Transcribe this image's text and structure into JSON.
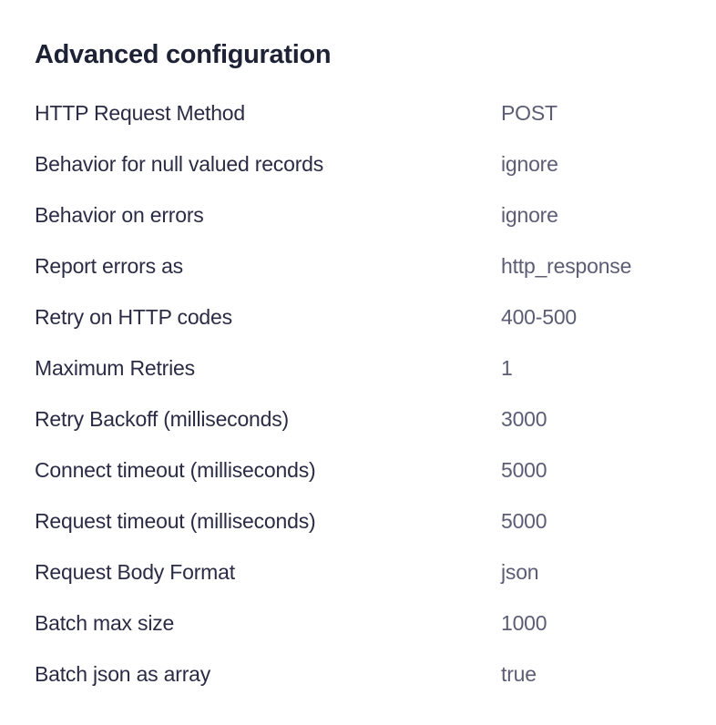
{
  "page": {
    "title": "Advanced configuration"
  },
  "config": {
    "rows": [
      {
        "label": "HTTP Request Method",
        "value": "POST"
      },
      {
        "label": "Behavior for null valued records",
        "value": "ignore"
      },
      {
        "label": "Behavior on errors",
        "value": "ignore"
      },
      {
        "label": "Report errors as",
        "value": "http_response"
      },
      {
        "label": "Retry on HTTP codes",
        "value": "400-500"
      },
      {
        "label": "Maximum Retries",
        "value": "1"
      },
      {
        "label": "Retry Backoff (milliseconds)",
        "value": "3000"
      },
      {
        "label": "Connect timeout (milliseconds)",
        "value": "5000"
      },
      {
        "label": "Request timeout (milliseconds)",
        "value": "5000"
      },
      {
        "label": "Request Body Format",
        "value": "json"
      },
      {
        "label": "Batch max size",
        "value": "1000"
      },
      {
        "label": "Batch json as array",
        "value": "true"
      }
    ]
  },
  "colors": {
    "background": "#ffffff",
    "title": "#1e2235",
    "label": "#2b2b45",
    "value": "#5c5c75"
  }
}
